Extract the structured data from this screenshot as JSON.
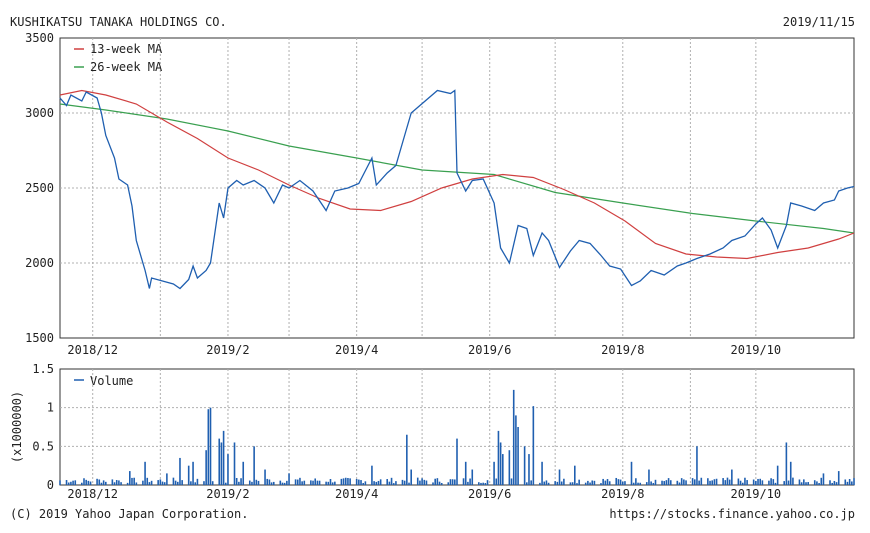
{
  "header": {
    "company": "KUSHIKATSU TANAKA HOLDINGS CO.",
    "date": "2019/11/15"
  },
  "footer": {
    "copyright": "(C) 2019 Yahoo Japan Corporation.",
    "url": "https://stocks.finance.yahoo.co.jp"
  },
  "colors": {
    "price": "#1f5fb0",
    "ma13": "#d04040",
    "ma26": "#3aa050",
    "volume": "#1f5fb0",
    "grid": "#b0b0b0"
  },
  "chart_data": [
    {
      "type": "line",
      "title": "",
      "x_ticks": [
        "2018/12",
        "2019/2",
        "2019/4",
        "2019/6",
        "2019/8",
        "2019/10"
      ],
      "ylim": [
        1500,
        3500
      ],
      "y_ticks": [
        "1500",
        "2000",
        "2500",
        "3000",
        "3500"
      ],
      "grid": true,
      "legend": "top-left",
      "x_range": [
        "2018/11/16",
        "2019/11/15"
      ],
      "series": [
        {
          "name": "price",
          "color": "#1f5fb0",
          "points": [
            [
              "2018/11/16",
              3100
            ],
            [
              "2018/11/19",
              3050
            ],
            [
              "2018/11/21",
              3120
            ],
            [
              "2018/11/26",
              3080
            ],
            [
              "2018/11/28",
              3140
            ],
            [
              "2018/12/03",
              3100
            ],
            [
              "2018/12/05",
              3000
            ],
            [
              "2018/12/07",
              2850
            ],
            [
              "2018/12/11",
              2700
            ],
            [
              "2018/12/13",
              2560
            ],
            [
              "2018/12/17",
              2520
            ],
            [
              "2018/12/19",
              2380
            ],
            [
              "2018/12/21",
              2150
            ],
            [
              "2018/12/25",
              1950
            ],
            [
              "2018/12/27",
              1830
            ],
            [
              "2018/12/28",
              1900
            ],
            [
              "2019/01/07",
              1860
            ],
            [
              "2019/01/10",
              1830
            ],
            [
              "2019/01/14",
              1890
            ],
            [
              "2019/01/16",
              1980
            ],
            [
              "2019/01/18",
              1900
            ],
            [
              "2019/01/22",
              1950
            ],
            [
              "2019/01/24",
              2000
            ],
            [
              "2019/01/28",
              2400
            ],
            [
              "2019/01/30",
              2300
            ],
            [
              "2019/02/01",
              2500
            ],
            [
              "2019/02/05",
              2550
            ],
            [
              "2019/02/08",
              2520
            ],
            [
              "2019/02/13",
              2550
            ],
            [
              "2019/02/18",
              2500
            ],
            [
              "2019/02/22",
              2400
            ],
            [
              "2019/02/26",
              2520
            ],
            [
              "2019/03/01",
              2500
            ],
            [
              "2019/03/06",
              2550
            ],
            [
              "2019/03/12",
              2480
            ],
            [
              "2019/03/18",
              2350
            ],
            [
              "2019/03/22",
              2480
            ],
            [
              "2019/03/28",
              2500
            ],
            [
              "2019/04/02",
              2530
            ],
            [
              "2019/04/08",
              2700
            ],
            [
              "2019/04/10",
              2520
            ],
            [
              "2019/04/15",
              2600
            ],
            [
              "2019/04/19",
              2650
            ],
            [
              "2019/04/24",
              2900
            ],
            [
              "2019/04/26",
              3000
            ],
            [
              "2019/05/08",
              3150
            ],
            [
              "2019/05/14",
              3130
            ],
            [
              "2019/05/16",
              3150
            ],
            [
              "2019/05/17",
              2600
            ],
            [
              "2019/05/21",
              2480
            ],
            [
              "2019/05/24",
              2550
            ],
            [
              "2019/05/29",
              2560
            ],
            [
              "2019/06/03",
              2400
            ],
            [
              "2019/06/06",
              2100
            ],
            [
              "2019/06/10",
              2000
            ],
            [
              "2019/06/14",
              2250
            ],
            [
              "2019/06/18",
              2230
            ],
            [
              "2019/06/21",
              2050
            ],
            [
              "2019/06/25",
              2200
            ],
            [
              "2019/06/28",
              2150
            ],
            [
              "2019/07/03",
              1970
            ],
            [
              "2019/07/08",
              2080
            ],
            [
              "2019/07/12",
              2150
            ],
            [
              "2019/07/17",
              2130
            ],
            [
              "2019/07/22",
              2050
            ],
            [
              "2019/07/26",
              1980
            ],
            [
              "2019/07/31",
              1960
            ],
            [
              "2019/08/05",
              1850
            ],
            [
              "2019/08/09",
              1880
            ],
            [
              "2019/08/14",
              1950
            ],
            [
              "2019/08/20",
              1920
            ],
            [
              "2019/08/26",
              1980
            ],
            [
              "2019/08/30",
              2000
            ],
            [
              "2019/09/04",
              2030
            ],
            [
              "2019/09/10",
              2060
            ],
            [
              "2019/09/16",
              2100
            ],
            [
              "2019/09/20",
              2150
            ],
            [
              "2019/09/26",
              2180
            ],
            [
              "2019/10/01",
              2260
            ],
            [
              "2019/10/04",
              2300
            ],
            [
              "2019/10/08",
              2220
            ],
            [
              "2019/10/11",
              2100
            ],
            [
              "2019/10/15",
              2250
            ],
            [
              "2019/10/17",
              2400
            ],
            [
              "2019/10/22",
              2380
            ],
            [
              "2019/10/28",
              2350
            ],
            [
              "2019/11/01",
              2400
            ],
            [
              "2019/11/06",
              2420
            ],
            [
              "2019/11/08",
              2480
            ],
            [
              "2019/11/12",
              2500
            ],
            [
              "2019/11/15",
              2510
            ]
          ]
        },
        {
          "name": "13-week MA",
          "color": "#d04040",
          "points": [
            [
              "2018/11/16",
              3120
            ],
            [
              "2018/11/26",
              3150
            ],
            [
              "2018/12/07",
              3120
            ],
            [
              "2018/12/21",
              3060
            ],
            [
              "2019/01/04",
              2940
            ],
            [
              "2019/01/18",
              2830
            ],
            [
              "2019/02/01",
              2700
            ],
            [
              "2019/02/15",
              2620
            ],
            [
              "2019/03/01",
              2520
            ],
            [
              "2019/03/15",
              2430
            ],
            [
              "2019/03/29",
              2360
            ],
            [
              "2019/04/12",
              2350
            ],
            [
              "2019/04/26",
              2410
            ],
            [
              "2019/05/10",
              2500
            ],
            [
              "2019/05/24",
              2560
            ],
            [
              "2019/06/07",
              2590
            ],
            [
              "2019/06/21",
              2570
            ],
            [
              "2019/07/05",
              2490
            ],
            [
              "2019/07/19",
              2400
            ],
            [
              "2019/08/02",
              2280
            ],
            [
              "2019/08/16",
              2130
            ],
            [
              "2019/08/30",
              2060
            ],
            [
              "2019/09/13",
              2040
            ],
            [
              "2019/09/27",
              2030
            ],
            [
              "2019/10/11",
              2070
            ],
            [
              "2019/10/25",
              2100
            ],
            [
              "2019/11/08",
              2160
            ],
            [
              "2019/11/15",
              2200
            ]
          ]
        },
        {
          "name": "26-week MA",
          "color": "#3aa050",
          "points": [
            [
              "2018/11/16",
              3060
            ],
            [
              "2018/12/07",
              3020
            ],
            [
              "2019/01/04",
              2960
            ],
            [
              "2019/02/01",
              2880
            ],
            [
              "2019/03/01",
              2780
            ],
            [
              "2019/04/01",
              2700
            ],
            [
              "2019/05/01",
              2620
            ],
            [
              "2019/06/03",
              2590
            ],
            [
              "2019/07/01",
              2470
            ],
            [
              "2019/08/01",
              2400
            ],
            [
              "2019/09/02",
              2330
            ],
            [
              "2019/10/01",
              2280
            ],
            [
              "2019/11/01",
              2230
            ],
            [
              "2019/11/15",
              2200
            ]
          ]
        }
      ]
    },
    {
      "type": "bar",
      "ylabel": "(x1000000)",
      "ylim": [
        0,
        1.5
      ],
      "y_ticks": [
        "0",
        "0.5",
        "1",
        "1.5"
      ],
      "x_ticks": [
        "2018/12",
        "2019/2",
        "2019/4",
        "2019/6",
        "2019/8",
        "2019/10"
      ],
      "grid": true,
      "legend": "top-left",
      "series": [
        {
          "name": "Volume",
          "color": "#1f5fb0",
          "base_level": 0.06,
          "spikes": [
            [
              "2018/12/18",
              0.18
            ],
            [
              "2018/12/25",
              0.3
            ],
            [
              "2019/01/04",
              0.15
            ],
            [
              "2019/01/10",
              0.35
            ],
            [
              "2019/01/14",
              0.25
            ],
            [
              "2019/01/16",
              0.3
            ],
            [
              "2019/01/22",
              0.45
            ],
            [
              "2019/01/23",
              0.98
            ],
            [
              "2019/01/24",
              1.0
            ],
            [
              "2019/01/28",
              0.6
            ],
            [
              "2019/01/29",
              0.55
            ],
            [
              "2019/01/30",
              0.7
            ],
            [
              "2019/02/01",
              0.4
            ],
            [
              "2019/02/04",
              0.55
            ],
            [
              "2019/02/08",
              0.3
            ],
            [
              "2019/02/13",
              0.5
            ],
            [
              "2019/02/18",
              0.2
            ],
            [
              "2019/03/01",
              0.15
            ],
            [
              "2019/04/08",
              0.25
            ],
            [
              "2019/04/24",
              0.65
            ],
            [
              "2019/04/26",
              0.2
            ],
            [
              "2019/05/17",
              0.6
            ],
            [
              "2019/05/21",
              0.3
            ],
            [
              "2019/05/24",
              0.2
            ],
            [
              "2019/06/03",
              0.3
            ],
            [
              "2019/06/05",
              0.7
            ],
            [
              "2019/06/06",
              0.55
            ],
            [
              "2019/06/07",
              0.4
            ],
            [
              "2019/06/10",
              0.45
            ],
            [
              "2019/06/12",
              1.23
            ],
            [
              "2019/06/13",
              0.9
            ],
            [
              "2019/06/14",
              0.75
            ],
            [
              "2019/06/17",
              0.5
            ],
            [
              "2019/06/19",
              0.4
            ],
            [
              "2019/06/21",
              1.02
            ],
            [
              "2019/06/25",
              0.3
            ],
            [
              "2019/07/03",
              0.2
            ],
            [
              "2019/07/10",
              0.25
            ],
            [
              "2019/08/05",
              0.3
            ],
            [
              "2019/08/13",
              0.2
            ],
            [
              "2019/09/04",
              0.5
            ],
            [
              "2019/09/20",
              0.2
            ],
            [
              "2019/10/11",
              0.25
            ],
            [
              "2019/10/15",
              0.55
            ],
            [
              "2019/10/17",
              0.3
            ],
            [
              "2019/11/01",
              0.15
            ],
            [
              "2019/11/08",
              0.18
            ]
          ]
        }
      ]
    }
  ]
}
